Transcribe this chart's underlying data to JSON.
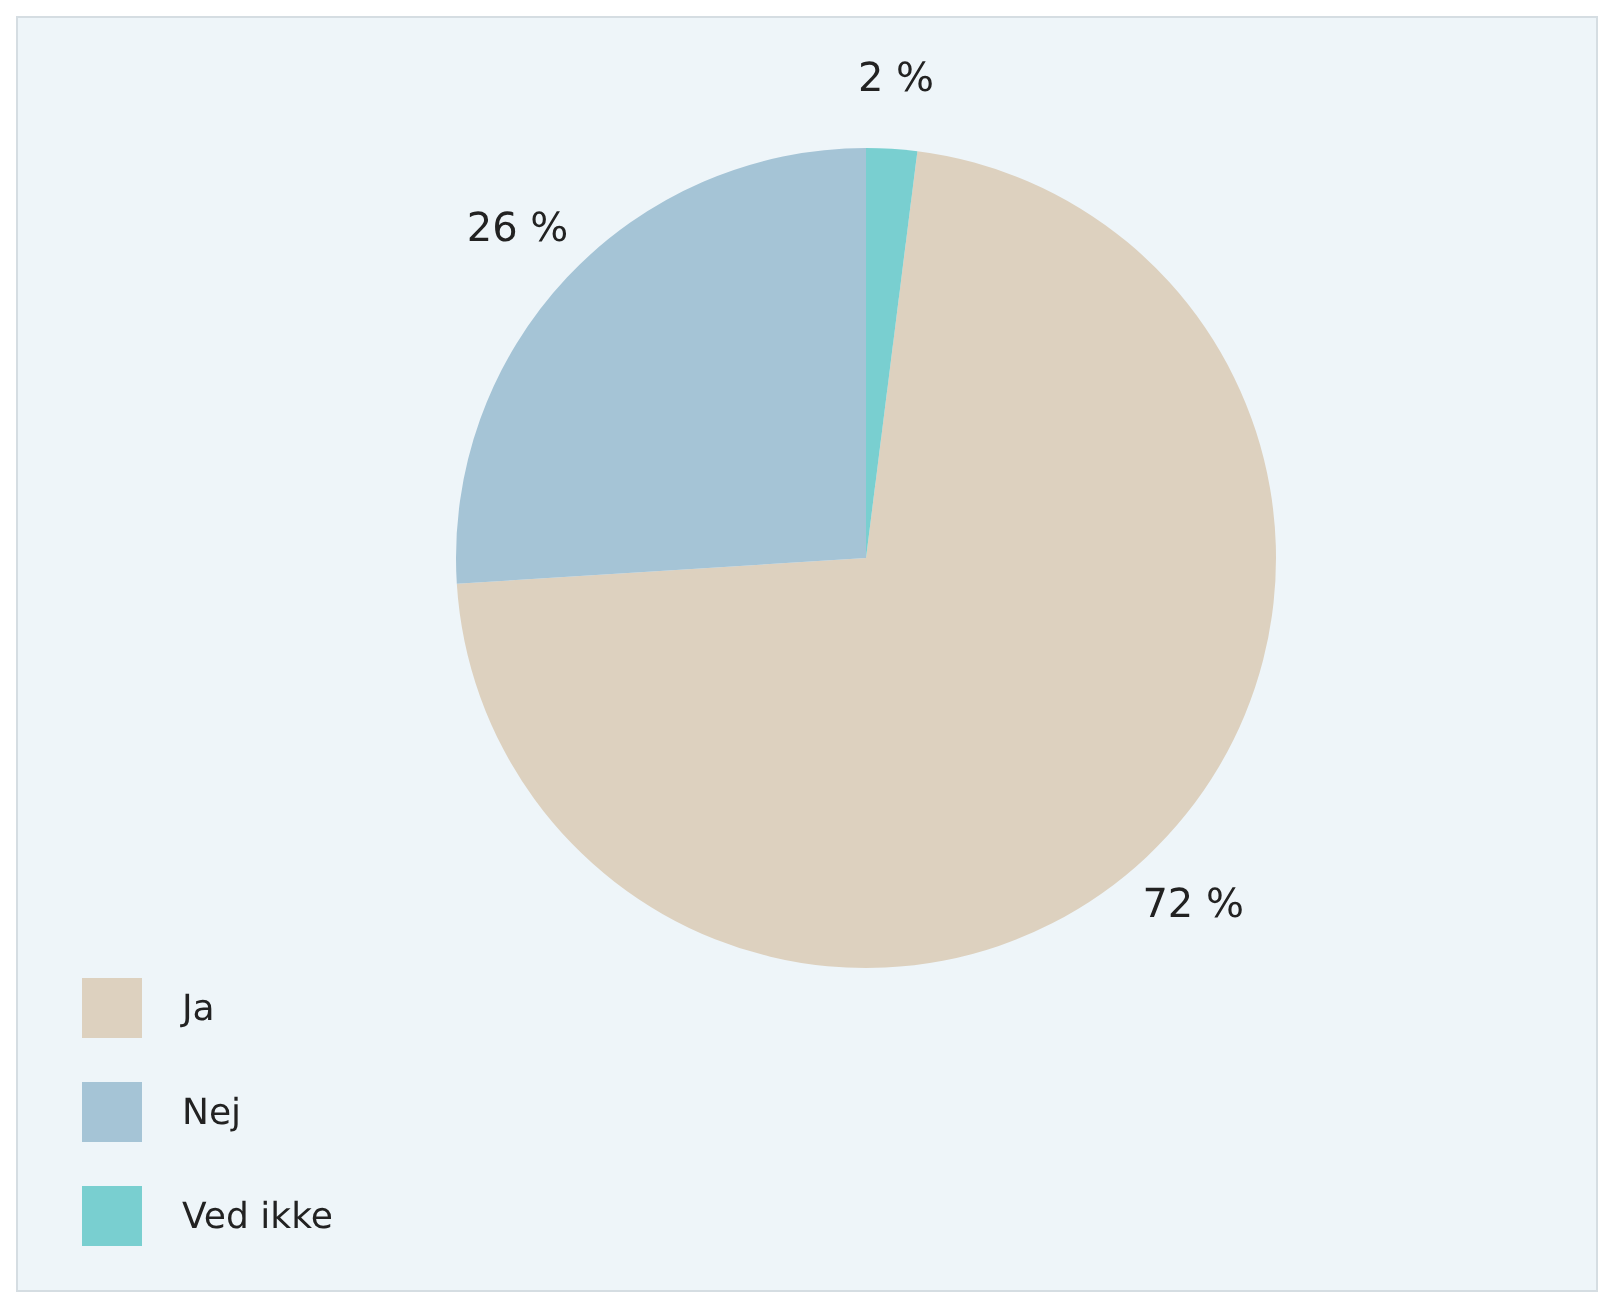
{
  "chart_data": {
    "type": "pie",
    "categories": [
      "Ja",
      "Nej",
      "Ved ikke"
    ],
    "values": [
      72,
      26,
      2
    ],
    "colors": [
      "#ddd1bf",
      "#a5c4d6",
      "#79cfd0"
    ],
    "value_labels": [
      "72 %",
      "26 %",
      "2 %"
    ],
    "legend": "bottom left"
  }
}
